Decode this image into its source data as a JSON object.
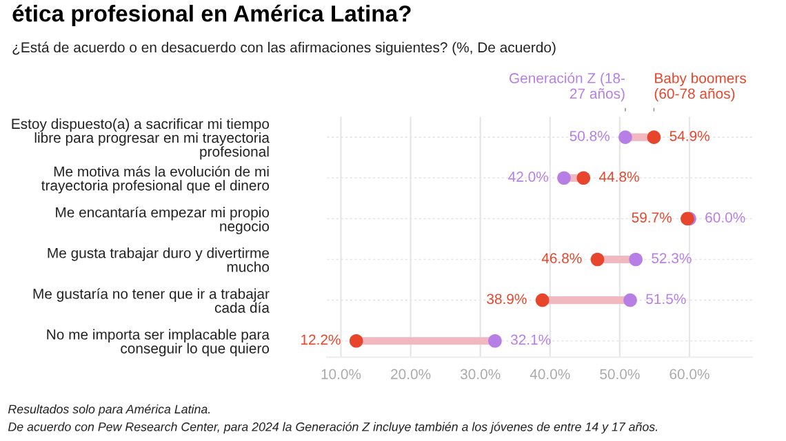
{
  "chart_data": {
    "type": "scatter",
    "orientation": "horizontal",
    "title": "ética profesional en América Latina?",
    "subtitle": "¿Está de acuerdo o en desacuerdo con las afirmaciones siguientes? (%, De acuerdo)",
    "categories": [
      "Estoy dispuesto(a) a sacrificar mi tiempo\nlibre para progresar en mi trayectoria\nprofesional",
      "Me motiva más la evolución de mi\ntrayectoria profesional que el dinero",
      "Me encantaría empezar mi propio\nnegocio",
      "Me gusta trabajar duro y divertirme\nmucho",
      "Me gustaría no tener que ir a trabajar\ncada día",
      "No me importa ser implacable para\nconseguir lo que quiero"
    ],
    "series": [
      {
        "name": "Generación Z (18-\n27 años)",
        "color": "#b77fe6",
        "values": [
          50.8,
          42.0,
          60.0,
          52.3,
          51.5,
          32.1
        ],
        "value_labels": [
          "50.8%",
          "42.0%",
          "60.0%",
          "52.3%",
          "51.5%",
          "32.1%"
        ]
      },
      {
        "name": "Baby boomers\n(60-78 años)",
        "color": "#e8462c",
        "values": [
          54.9,
          44.8,
          59.7,
          46.8,
          38.9,
          12.2
        ],
        "value_labels": [
          "54.9%",
          "44.8%",
          "59.7%",
          "46.8%",
          "38.9%",
          "12.2%"
        ]
      }
    ],
    "xlim": [
      8,
      69
    ],
    "xticks": [
      {
        "value": 10,
        "label": "10.0%"
      },
      {
        "value": 20,
        "label": "20.0%"
      },
      {
        "value": 30,
        "label": "30.0%"
      },
      {
        "value": 40,
        "label": "40.0%"
      },
      {
        "value": 50,
        "label": "50.0%"
      },
      {
        "value": 60,
        "label": "60.0%"
      }
    ],
    "grid": true,
    "legend": "top right",
    "marker": "circle",
    "annotations": [
      "Resultados solo para América Latina.",
      "De acuerdo con Pew Research Center, para 2024 la Generación Z incluye también a los jóvenes de entre 14 y 17 años."
    ]
  }
}
